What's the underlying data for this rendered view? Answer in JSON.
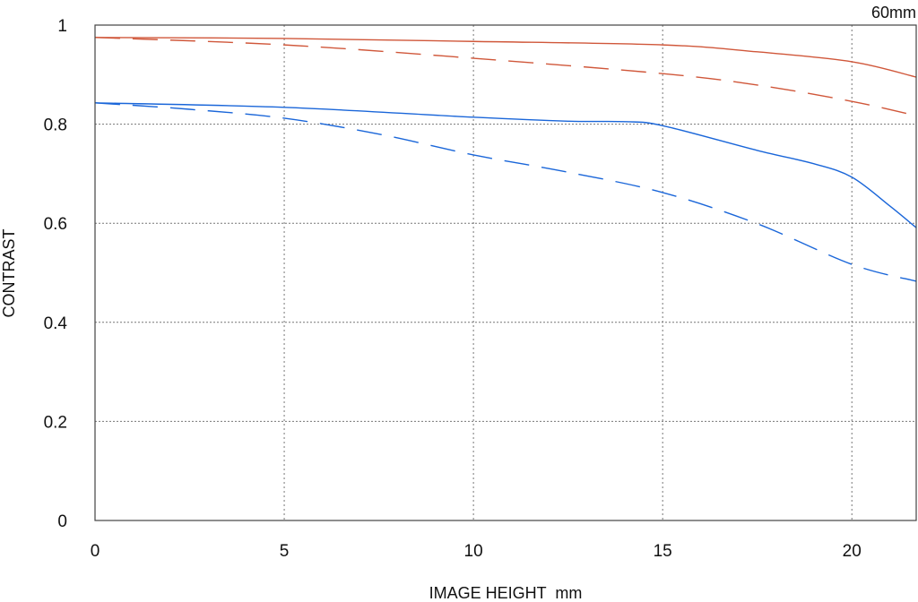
{
  "chart_data": {
    "type": "line",
    "title": "60mm",
    "xlabel": "IMAGE HEIGHT  mm",
    "ylabel": "CONTRAST",
    "xlim": [
      0,
      21.7
    ],
    "ylim": [
      0,
      1
    ],
    "xticks": [
      0,
      5,
      10,
      15,
      20
    ],
    "xtick_labels": [
      "0",
      "5",
      "10",
      "15",
      "20"
    ],
    "yticks": [
      0,
      0.2,
      0.4,
      0.6,
      0.8,
      1
    ],
    "ytick_labels": [
      "0",
      "0.2",
      "0.4",
      "0.6",
      "0.8",
      "1"
    ],
    "grid": true,
    "series": [
      {
        "name": "red-solid",
        "color": "#d0573a",
        "dash": false,
        "x": [
          0,
          5,
          10,
          15,
          17.5,
          20,
          21.7
        ],
        "y": [
          0.975,
          0.973,
          0.967,
          0.96,
          0.946,
          0.926,
          0.895
        ]
      },
      {
        "name": "red-dashed",
        "color": "#d0573a",
        "dash": true,
        "x": [
          0,
          5,
          10,
          15,
          17.5,
          20,
          21.7
        ],
        "y": [
          0.975,
          0.96,
          0.933,
          0.902,
          0.879,
          0.846,
          0.817
        ]
      },
      {
        "name": "blue-solid",
        "color": "#1a66d9",
        "dash": false,
        "x": [
          0,
          5,
          10,
          12.5,
          14,
          15,
          17.5,
          19,
          20,
          21,
          21.7
        ],
        "y": [
          0.843,
          0.834,
          0.814,
          0.806,
          0.805,
          0.797,
          0.747,
          0.72,
          0.693,
          0.635,
          0.591
        ]
      },
      {
        "name": "blue-dashed",
        "color": "#1a66d9",
        "dash": true,
        "x": [
          0,
          2.5,
          5,
          7.5,
          10,
          12.5,
          15,
          17.5,
          20,
          21.7
        ],
        "y": [
          0.843,
          0.83,
          0.812,
          0.78,
          0.738,
          0.703,
          0.662,
          0.599,
          0.517,
          0.483
        ]
      }
    ]
  }
}
